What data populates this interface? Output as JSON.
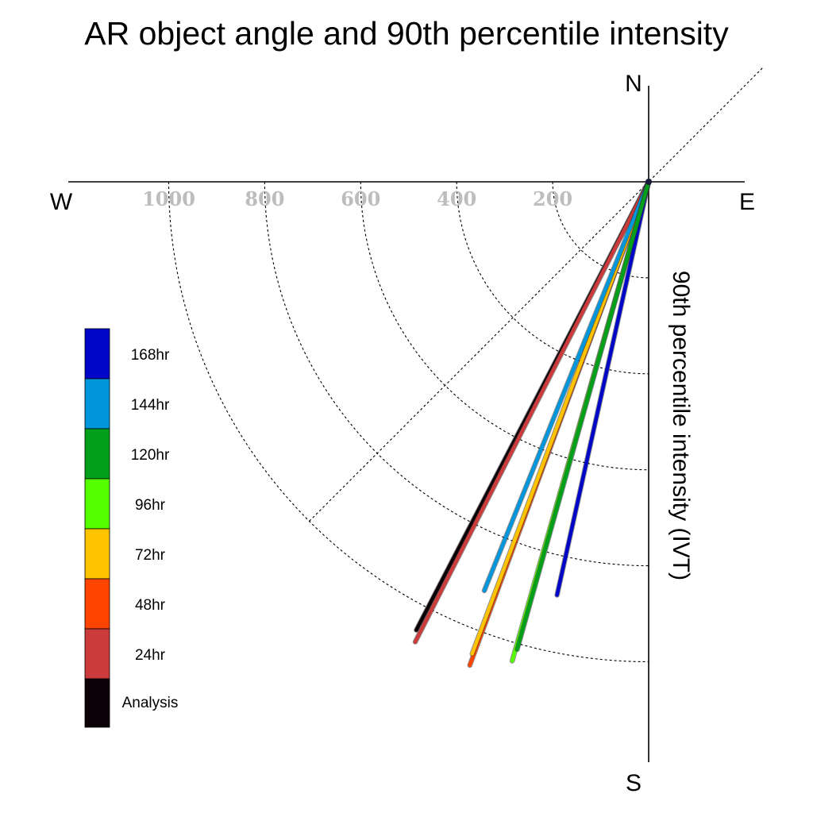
{
  "chart_data": {
    "type": "polar-vector",
    "title": "AR object angle and 90th percentile intensity",
    "ylabel": "90th percentile intensity (IVT)",
    "compass": {
      "north": "N",
      "south": "S",
      "east": "E",
      "west": "W"
    },
    "radial_ticks": [
      200,
      400,
      600,
      800,
      1000
    ],
    "radial_tick_labels": [
      "200",
      "400",
      "600",
      "800",
      "1000"
    ],
    "rlim": [
      0,
      1200
    ],
    "grid": true,
    "legend_position": "left",
    "series": [
      {
        "name": "Analysis",
        "color": "#0a0006",
        "vectors": [
          {
            "angle_deg": 207.4,
            "intensity": 1052
          }
        ]
      },
      {
        "name": "24hr",
        "color": "#cc3b3b",
        "vectors": [
          {
            "angle_deg": 206.9,
            "intensity": 1075
          }
        ]
      },
      {
        "name": "48hr",
        "color": "#ff4400",
        "vectors": [
          {
            "angle_deg": 200.3,
            "intensity": 1074
          }
        ]
      },
      {
        "name": "72hr",
        "color": "#ffc400",
        "vectors": [
          {
            "angle_deg": 200.5,
            "intensity": 1050
          }
        ]
      },
      {
        "name": "96hr",
        "color": "#55ff00",
        "vectors": [
          {
            "angle_deg": 195.9,
            "intensity": 1038
          }
        ]
      },
      {
        "name": "120hr",
        "color": "#00a01a",
        "vectors": [
          {
            "angle_deg": 195.7,
            "intensity": 1012
          }
        ]
      },
      {
        "name": "144hr",
        "color": "#0096dc",
        "vectors": [
          {
            "angle_deg": 201.9,
            "intensity": 918
          }
        ]
      },
      {
        "name": "168hr",
        "color": "#0006c8",
        "vectors": [
          {
            "angle_deg": 192.5,
            "intensity": 882
          }
        ]
      }
    ]
  }
}
